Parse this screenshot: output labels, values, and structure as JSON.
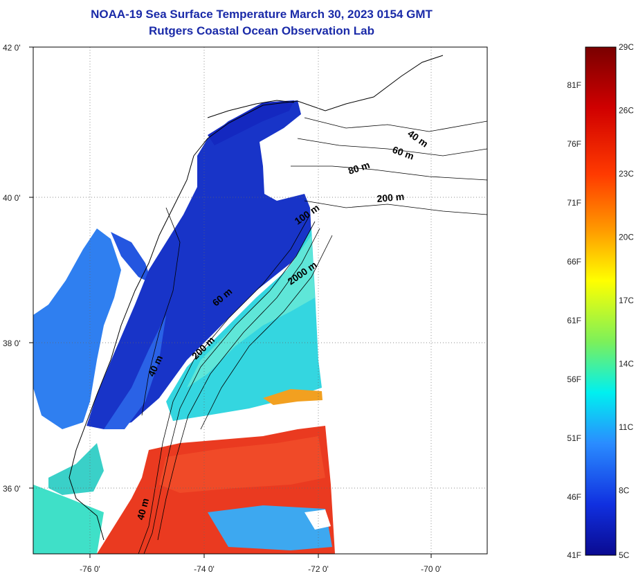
{
  "title": {
    "line1": "NOAA-19 Sea Surface Temperature March 30, 2023 0154 GMT",
    "line2": "Rutgers Coastal Ocean Observation Lab"
  },
  "map": {
    "lat_labels": [
      "42 0'",
      "40 0'",
      "38 0'",
      "36 0'"
    ],
    "lon_labels": [
      "-76 0'",
      "-74 0'",
      "-72 0'",
      "-70 0'"
    ],
    "depth_contour_labels": [
      "40 m",
      "60 m",
      "80 m",
      "200 m",
      "100 m",
      "2000 m",
      "60 m",
      "200 m",
      "40 m",
      "40 m"
    ],
    "colors": {
      "land": "#ffffff",
      "cold": "#1428c8",
      "cool": "#2f7ff0",
      "mid": "#3fe0e8",
      "warm": "#f23a1e",
      "hot": "#d41a14",
      "title": "#1a2aa8"
    }
  },
  "colorbar": {
    "fahrenheit_labels": [
      "81F",
      "76F",
      "71F",
      "66F",
      "61F",
      "56F",
      "51F",
      "46F",
      "41F"
    ],
    "celsius_labels": [
      "29C",
      "26C",
      "23C",
      "20C",
      "17C",
      "14C",
      "11C",
      "8C",
      "5C"
    ],
    "stops": [
      "#7a0000",
      "#d00000",
      "#ff3a00",
      "#ff9a00",
      "#ffff00",
      "#7cf05a",
      "#00f0f0",
      "#2a8cff",
      "#1030e0",
      "#0a0a90"
    ]
  }
}
